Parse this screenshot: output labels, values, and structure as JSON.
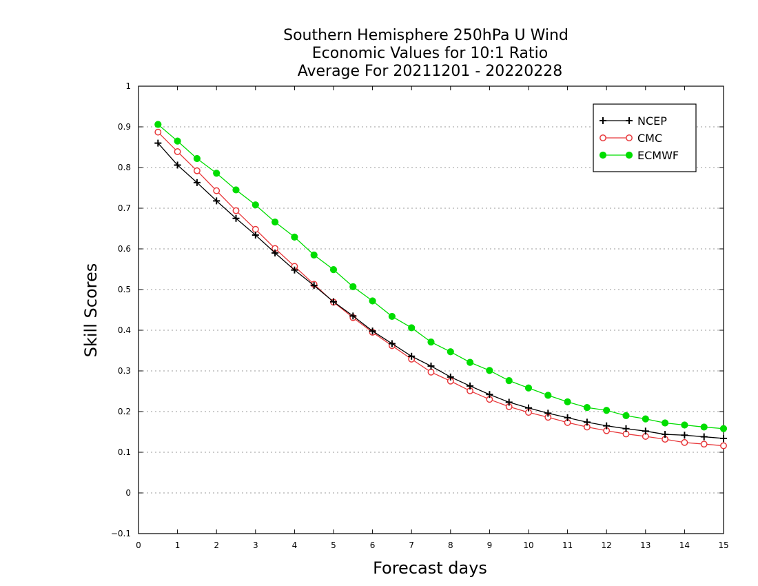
{
  "chart_data": {
    "type": "line",
    "title_lines": [
      "Southern Hemisphere 250hPa U Wind",
      "Economic Values for 10:1 Ratio",
      "Average For 20211201 - 20220228"
    ],
    "xlabel": "Forecast days",
    "ylabel": "Skill Scores",
    "xlim": [
      0,
      15
    ],
    "ylim": [
      -0.1,
      1
    ],
    "x_ticks": [
      "0",
      "1",
      "2",
      "3",
      "4",
      "5",
      "6",
      "7",
      "8",
      "9",
      "10",
      "11",
      "12",
      "13",
      "14",
      "15"
    ],
    "y_ticks": [
      "−0.1",
      "0",
      "0.1",
      "0.2",
      "0.3",
      "0.4",
      "0.5",
      "0.6",
      "0.7",
      "0.8",
      "0.9",
      "1"
    ],
    "grid": true,
    "legend_position": "top-right",
    "x": [
      0.5,
      1,
      1.5,
      2,
      2.5,
      3,
      3.5,
      4,
      4.5,
      5,
      5.5,
      6,
      6.5,
      7,
      7.5,
      8,
      8.5,
      9,
      9.5,
      10,
      10.5,
      11,
      11.5,
      12,
      12.5,
      13,
      13.5,
      14,
      14.5,
      15
    ],
    "series": [
      {
        "name": "NCEP",
        "color": "#000000",
        "marker": "plus",
        "values": [
          0.86,
          0.806,
          0.763,
          0.718,
          0.675,
          0.634,
          0.59,
          0.548,
          0.51,
          0.47,
          0.435,
          0.398,
          0.367,
          0.336,
          0.312,
          0.285,
          0.263,
          0.242,
          0.223,
          0.209,
          0.196,
          0.185,
          0.174,
          0.165,
          0.158,
          0.152,
          0.144,
          0.142,
          0.138,
          0.134
        ]
      },
      {
        "name": "CMC",
        "color": "#e8383b",
        "marker": "open-circle",
        "values": [
          0.887,
          0.839,
          0.792,
          0.743,
          0.694,
          0.648,
          0.601,
          0.557,
          0.513,
          0.469,
          0.431,
          0.395,
          0.362,
          0.329,
          0.297,
          0.275,
          0.251,
          0.23,
          0.212,
          0.198,
          0.186,
          0.173,
          0.162,
          0.153,
          0.145,
          0.139,
          0.132,
          0.124,
          0.12,
          0.116
        ]
      },
      {
        "name": "ECMWF",
        "color": "#00dd00",
        "marker": "filled-circle",
        "values": [
          0.906,
          0.865,
          0.822,
          0.786,
          0.745,
          0.708,
          0.666,
          0.629,
          0.585,
          0.549,
          0.507,
          0.472,
          0.434,
          0.406,
          0.371,
          0.347,
          0.321,
          0.301,
          0.276,
          0.258,
          0.24,
          0.224,
          0.21,
          0.203,
          0.19,
          0.182,
          0.172,
          0.167,
          0.162,
          0.158
        ]
      }
    ]
  }
}
